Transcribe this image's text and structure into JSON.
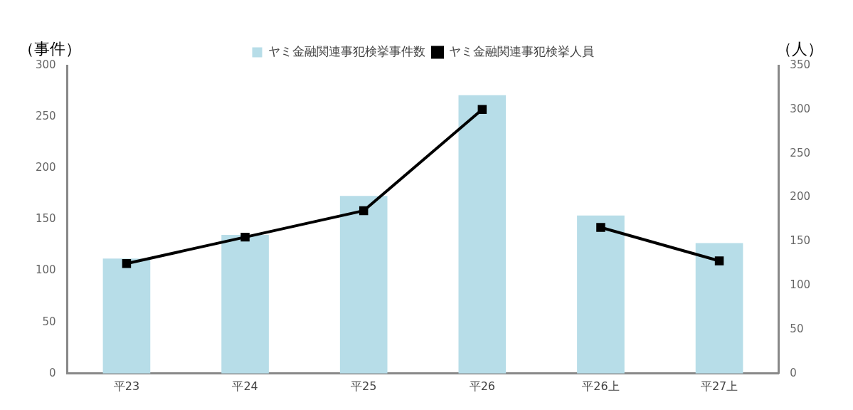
{
  "chart_data": {
    "type": "bar",
    "ylabel": "（事件）",
    "y2label": "（人）",
    "categories": [
      "平23",
      "平24",
      "平25",
      "平26",
      "平26上",
      "平27上"
    ],
    "series": [
      {
        "name": "ヤミ金融関連事犯検挙事件数",
        "color": "#b7dde8",
        "values": [
          112,
          135,
          173,
          271,
          154,
          127
        ]
      },
      {
        "name": "ヤミ金融関連事犯検挙人員",
        "type": "line",
        "axis": "y2",
        "color": "#000000",
        "values": [
          125,
          155,
          185,
          300,
          null,
          null
        ]
      },
      {
        "type": "line",
        "axis": "y2",
        "color": "#000000",
        "values": [
          null,
          null,
          null,
          null,
          166,
          128
        ]
      }
    ],
    "ylim": [
      0,
      300
    ],
    "yticks": [
      0,
      50,
      100,
      150,
      200,
      250,
      300
    ],
    "y2lim": [
      0,
      350
    ],
    "y2ticks": [
      0,
      50,
      100,
      150,
      200,
      250,
      300,
      350
    ],
    "grid": false,
    "legend": "top",
    "marker": "square",
    "line_style": "solid"
  }
}
